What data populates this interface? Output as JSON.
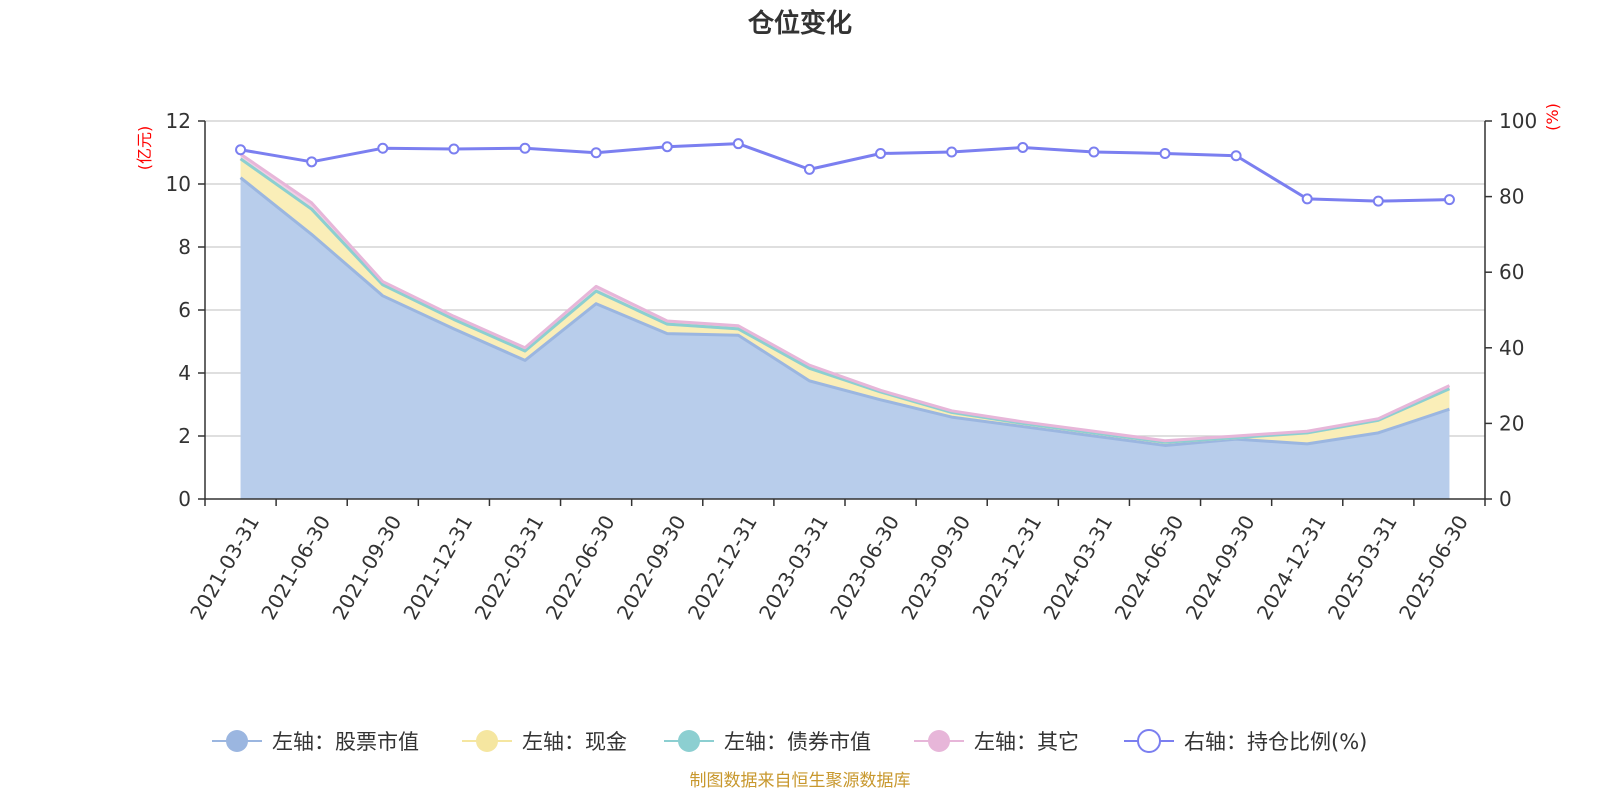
{
  "chart_data": {
    "type": "area",
    "title": "仓位变化",
    "source": "制图数据来自恒生聚源数据库",
    "left_axis": {
      "unit": "(亿元)",
      "ylim": [
        0,
        12
      ],
      "ticks": [
        0,
        2,
        4,
        6,
        8,
        10,
        12
      ]
    },
    "right_axis": {
      "unit": "(%)",
      "ylim": [
        0,
        100
      ],
      "ticks": [
        0,
        20,
        40,
        60,
        80,
        100
      ]
    },
    "categories": [
      "2021-03-31",
      "2021-06-30",
      "2021-09-30",
      "2021-12-31",
      "2022-03-31",
      "2022-06-30",
      "2022-09-30",
      "2022-12-31",
      "2023-03-31",
      "2023-06-30",
      "2023-09-30",
      "2023-12-31",
      "2024-03-31",
      "2024-06-30",
      "2024-09-30",
      "2024-12-31",
      "2025-03-31",
      "2025-06-30"
    ],
    "series": [
      {
        "name": "左轴：股票市值",
        "axis": "left",
        "stack": true,
        "color": "#9bb6e0",
        "fill": "#b8cdeb",
        "values": [
          10.2,
          8.4,
          6.45,
          5.4,
          4.4,
          6.2,
          5.25,
          5.2,
          3.75,
          3.15,
          2.6,
          2.3,
          2.0,
          1.7,
          1.9,
          1.75,
          2.1,
          2.85
        ]
      },
      {
        "name": "左轴：现金",
        "axis": "left",
        "stack": true,
        "color": "#f5e6a0",
        "fill": "#faeeb8",
        "values": [
          0.6,
          0.8,
          0.35,
          0.3,
          0.3,
          0.4,
          0.3,
          0.2,
          0.4,
          0.25,
          0.15,
          0.1,
          0.1,
          0.1,
          0.05,
          0.35,
          0.4,
          0.65
        ]
      },
      {
        "name": "左轴：债券市值",
        "axis": "left",
        "stack": true,
        "color": "#8ccfd1",
        "fill": "#b5e2e3",
        "values": [
          0,
          0,
          0,
          0,
          0,
          0,
          0,
          0,
          0,
          0,
          0,
          0,
          0,
          0,
          0,
          0,
          0,
          0
        ]
      },
      {
        "name": "左轴：其它",
        "axis": "left",
        "stack": true,
        "color": "#e7b6d9",
        "fill": "#f0cfe6",
        "values": [
          0.15,
          0.2,
          0.1,
          0.1,
          0.1,
          0.15,
          0.1,
          0.1,
          0.1,
          0.05,
          0.05,
          0.05,
          0.05,
          0.05,
          0.05,
          0.05,
          0.05,
          0.1
        ]
      },
      {
        "name": "右轴：持仓比例(%)",
        "axis": "right",
        "stack": false,
        "color": "#7b7ff0",
        "values": [
          92.4,
          89.2,
          92.8,
          92.6,
          92.8,
          91.6,
          93.2,
          94.0,
          87.2,
          91.4,
          91.8,
          93.0,
          91.8,
          91.4,
          90.8,
          79.4,
          78.8,
          79.2
        ]
      }
    ],
    "grid": true,
    "legend_position": "bottom"
  }
}
